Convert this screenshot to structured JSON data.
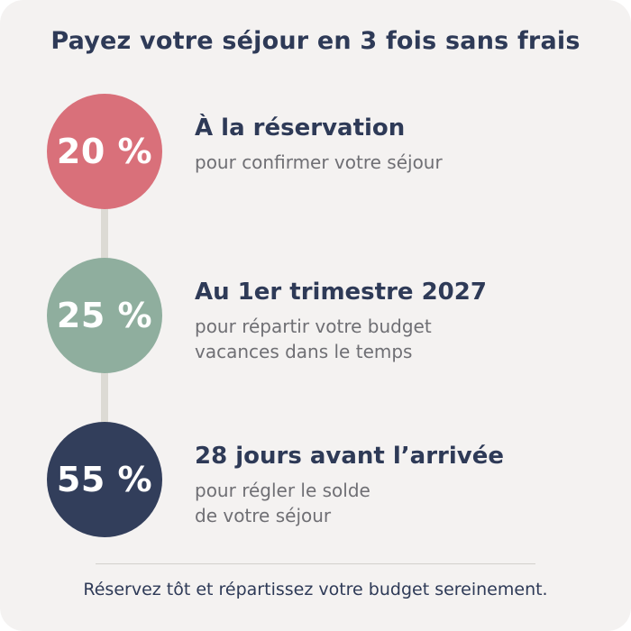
{
  "title": "Payez votre séjour en 3 fois sans frais",
  "steps": [
    {
      "percent": "20 %",
      "heading": "À la réservation",
      "description": [
        "pour confirmer votre séjour"
      ],
      "color": "#d9707a"
    },
    {
      "percent": "25 %",
      "heading": "Au 1er trimestre 2027",
      "description": [
        "pour répartir votre budget",
        "vacances dans le temps"
      ],
      "color": "#8fae9e"
    },
    {
      "percent": "55 %",
      "heading": "28 jours avant l’arrivée",
      "description": [
        "pour régler le solde",
        "de votre séjour"
      ],
      "color": "#323e5b"
    }
  ],
  "footer": "Réservez tôt et répartissez votre budget sereinement."
}
